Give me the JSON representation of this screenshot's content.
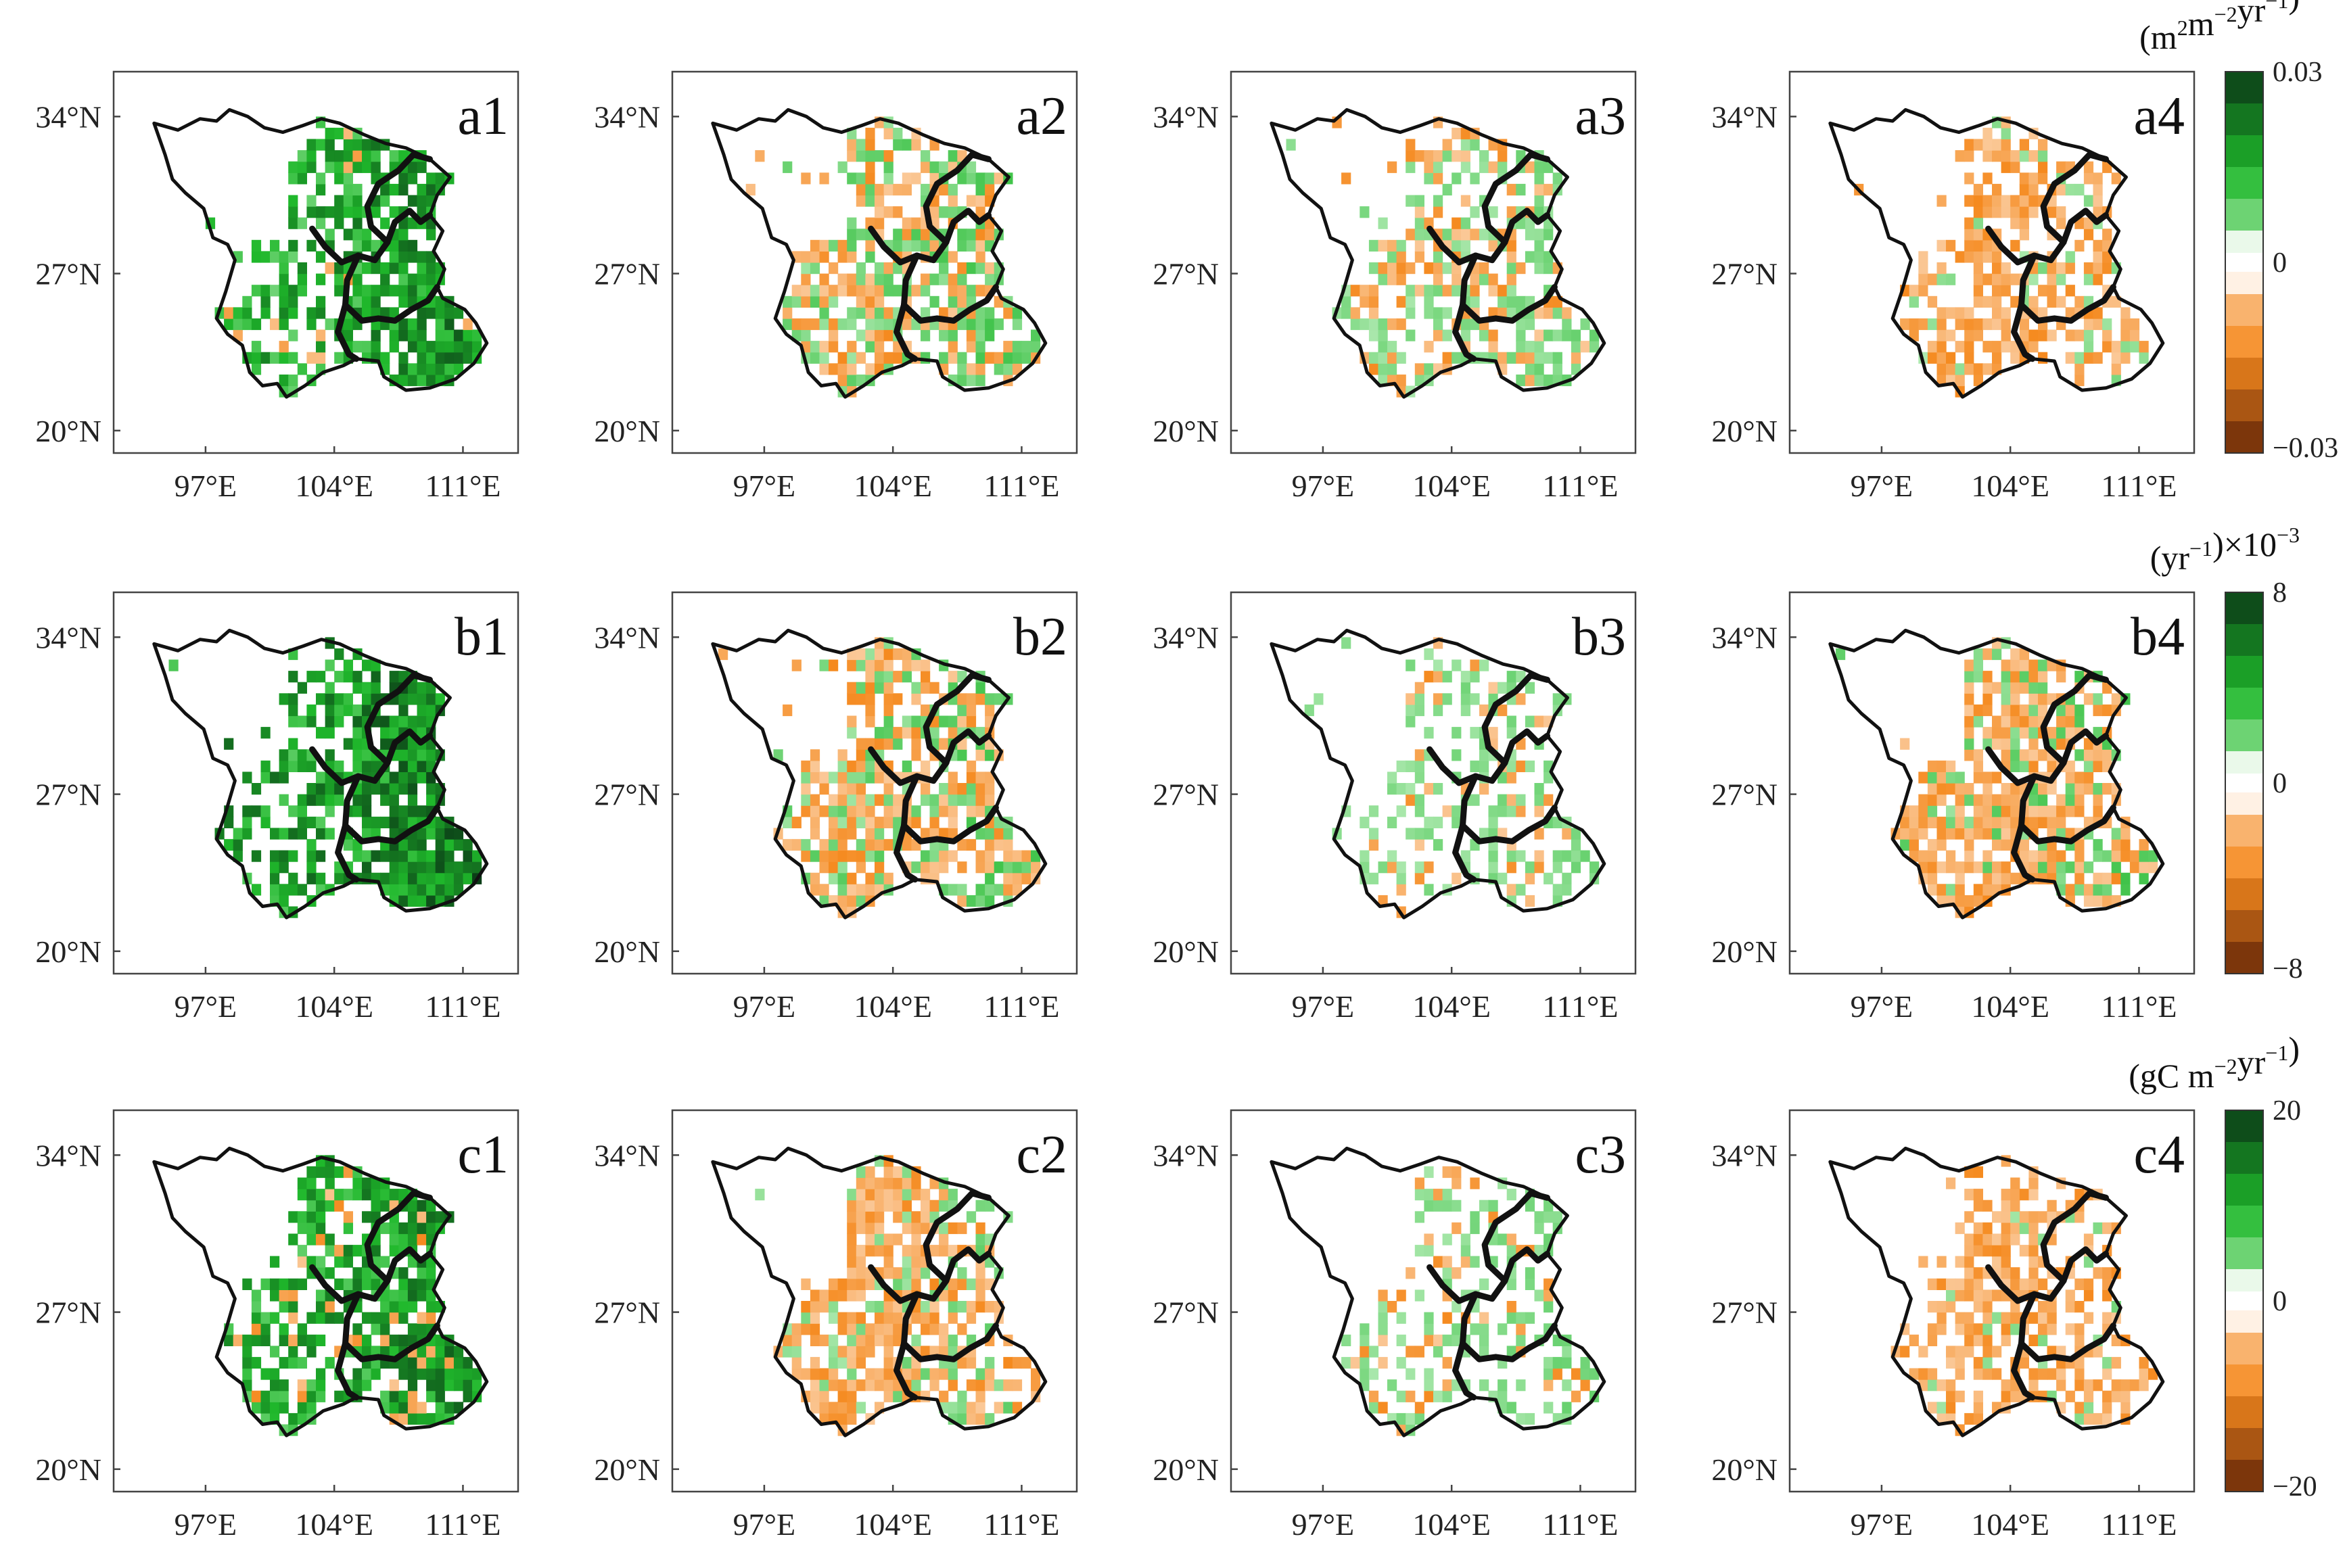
{
  "figure": {
    "axes": {
      "lon_ticks": [
        "97°E",
        "104°E",
        "111°E"
      ],
      "lat_ticks": [
        "34°N",
        "27°N",
        "20°N"
      ],
      "lon_values": [
        97,
        104,
        111
      ],
      "lat_values": [
        34,
        27,
        20
      ],
      "lon_range": [
        92,
        114
      ],
      "lat_range": [
        19,
        36
      ]
    },
    "rows": [
      {
        "panels": [
          "a1",
          "a2",
          "a3",
          "a4"
        ],
        "colorbar": {
          "unit_main": "(m",
          "unit_sup1": "2",
          "unit_mid": "m",
          "unit_sup2": "−2",
          "unit_tail": "yr",
          "unit_sup3": "−1",
          "unit_close": ")",
          "max_label": "0.03",
          "zero_label": "0",
          "min_label": "−0.03",
          "multiplier": ""
        }
      },
      {
        "panels": [
          "b1",
          "b2",
          "b3",
          "b4"
        ],
        "colorbar": {
          "unit_main": "(yr",
          "unit_sup1": "−1",
          "unit_mid": ")",
          "unit_sup2": "",
          "unit_tail": "×10",
          "unit_sup3": "−3",
          "unit_close": "",
          "max_label": "8",
          "zero_label": "0",
          "min_label": "−8",
          "multiplier": "×10⁻³"
        }
      },
      {
        "panels": [
          "c1",
          "c2",
          "c3",
          "c4"
        ],
        "colorbar": {
          "unit_main": "(gC m",
          "unit_sup1": "−2",
          "unit_mid": "yr",
          "unit_sup2": "−1",
          "unit_tail": ")",
          "unit_sup3": "",
          "unit_close": "",
          "max_label": "20",
          "zero_label": "0",
          "min_label": "−20",
          "multiplier": ""
        }
      }
    ],
    "panel_trends": {
      "a1": {
        "green": 0.85,
        "orange": 0.03,
        "intensity": 0.75
      },
      "a2": {
        "green": 0.45,
        "orange": 0.35,
        "intensity": 0.35
      },
      "a3": {
        "green": 0.45,
        "orange": 0.25,
        "intensity": 0.25
      },
      "a4": {
        "green": 0.12,
        "orange": 0.45,
        "intensity": 0.22
      },
      "b1": {
        "green": 0.92,
        "orange": 0.0,
        "intensity": 0.85
      },
      "b2": {
        "green": 0.35,
        "orange": 0.45,
        "intensity": 0.35
      },
      "b3": {
        "green": 0.42,
        "orange": 0.1,
        "intensity": 0.25
      },
      "b4": {
        "green": 0.25,
        "orange": 0.55,
        "intensity": 0.35
      },
      "c1": {
        "green": 0.8,
        "orange": 0.08,
        "intensity": 0.75
      },
      "c2": {
        "green": 0.22,
        "orange": 0.5,
        "intensity": 0.28
      },
      "c3": {
        "green": 0.35,
        "orange": 0.12,
        "intensity": 0.25
      },
      "c4": {
        "green": 0.06,
        "orange": 0.5,
        "intensity": 0.22
      }
    },
    "colors": {
      "green_dark": "#0b3d17",
      "green_mid": "#1fb82b",
      "green_light": "#c8f2c8",
      "orange_light": "#fde3cb",
      "orange_mid": "#f58a1f",
      "orange_dark": "#6b2a08",
      "border": "#111111"
    }
  }
}
